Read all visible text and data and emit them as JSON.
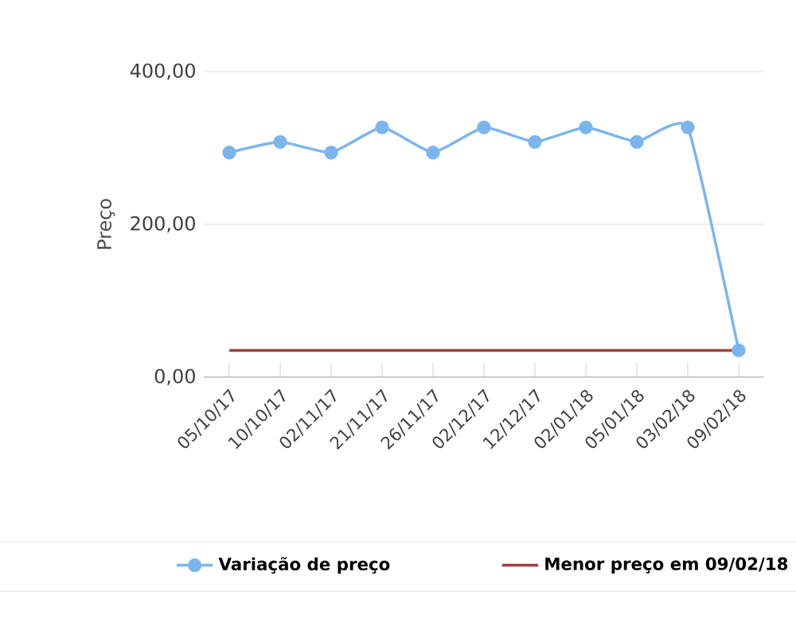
{
  "chart_data": {
    "type": "line",
    "ylabel": "Preço",
    "categories": [
      "05/10/17",
      "10/10/17",
      "02/11/17",
      "21/11/17",
      "26/11/17",
      "02/12/17",
      "12/12/17",
      "02/01/18",
      "05/01/18",
      "03/02/18",
      "09/02/18"
    ],
    "series": [
      {
        "name": "Variação de preço",
        "color": "#7cb5ec",
        "marker": "circle",
        "values": [
          294,
          308,
          294,
          327,
          294,
          327,
          308,
          327,
          308,
          327,
          35
        ]
      },
      {
        "name": "Menor preço em 09/02/18",
        "color": "#a4403d",
        "marker": "none",
        "values": [
          35,
          35,
          35,
          35,
          35,
          35,
          35,
          35,
          35,
          35,
          35
        ]
      }
    ],
    "ylim": [
      0,
      400
    ],
    "yticks": [
      {
        "value": 0,
        "label": "0,00"
      },
      {
        "value": 200,
        "label": "200,00"
      },
      {
        "value": 400,
        "label": "400,00"
      }
    ],
    "grid": "y",
    "legend": "bottom"
  }
}
